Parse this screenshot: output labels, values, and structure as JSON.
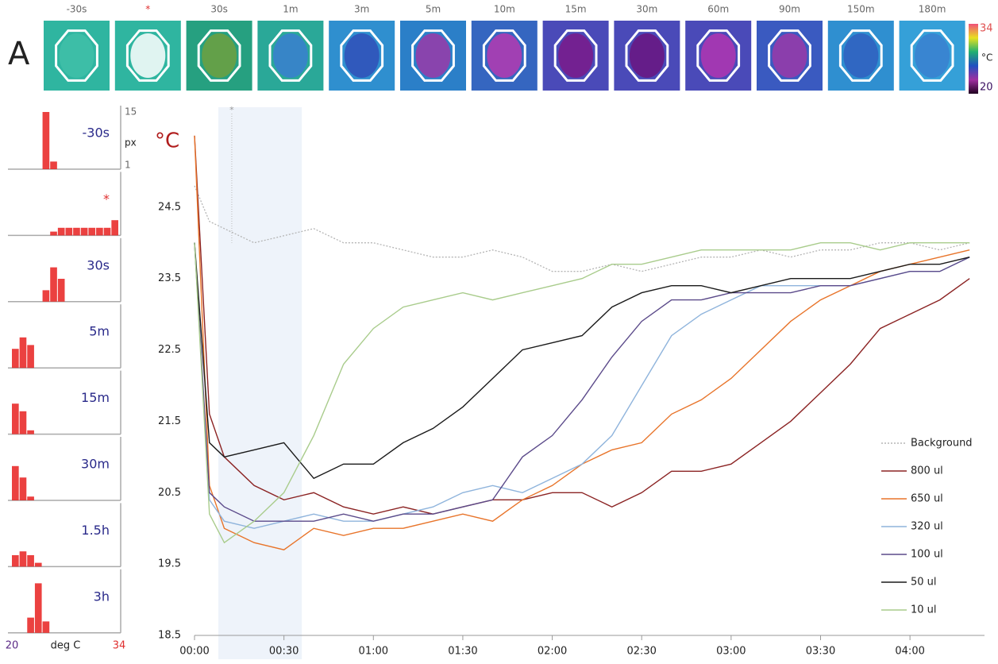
{
  "figure": {
    "panel_label": "A",
    "thumbnails": [
      {
        "label": "-30s",
        "color": "#2fb5a0",
        "inner": "#3fc0a8",
        "label_color": "#666666"
      },
      {
        "label": "*",
        "color": "#2fb5a0",
        "inner": "#ffffff",
        "label_color": "#e03030"
      },
      {
        "label": "30s",
        "color": "#26a080",
        "inner": "#6fa040",
        "label_color": "#666666"
      },
      {
        "label": "1m",
        "color": "#2aa898",
        "inner": "#3a7fcf",
        "label_color": "#666666"
      },
      {
        "label": "3m",
        "color": "#2f8fcf",
        "inner": "#3050b8",
        "label_color": "#666666"
      },
      {
        "label": "5m",
        "color": "#2b7fc8",
        "inner": "#9a3aa8",
        "label_color": "#666666"
      },
      {
        "label": "10m",
        "color": "#3566c0",
        "inner": "#b43ab0",
        "label_color": "#666666"
      },
      {
        "label": "15m",
        "color": "#4a4ab8",
        "inner": "#7a1a8a",
        "label_color": "#666666"
      },
      {
        "label": "30m",
        "color": "#4a4ab8",
        "inner": "#6a1580",
        "label_color": "#666666"
      },
      {
        "label": "60m",
        "color": "#4a4ab8",
        "inner": "#b035b0",
        "label_color": "#666666"
      },
      {
        "label": "90m",
        "color": "#3a5ac0",
        "inner": "#9a3aa8",
        "label_color": "#666666"
      },
      {
        "label": "150m",
        "color": "#2f8fd0",
        "inner": "#3060c0",
        "label_color": "#666666"
      },
      {
        "label": "180m",
        "color": "#35a0d8",
        "inner": "#3a80d0",
        "label_color": "#666666"
      }
    ],
    "colorbar": {
      "max": 34,
      "min": 20,
      "label": "°C",
      "colors": [
        "#f0507a",
        "#e8e020",
        "#20b070",
        "#2050c0",
        "#a030a0",
        "#200020"
      ]
    }
  },
  "chart_data": [
    {
      "type": "line",
      "y_label": "°C",
      "y_label_color": "#b01c1c",
      "xlim": [
        0,
        265
      ],
      "ylim": [
        18.5,
        25.9
      ],
      "xticks": [
        {
          "value": 0,
          "label": "00:00"
        },
        {
          "value": 30,
          "label": "00:30"
        },
        {
          "value": 60,
          "label": "01:00"
        },
        {
          "value": 90,
          "label": "01:30"
        },
        {
          "value": 120,
          "label": "02:00"
        },
        {
          "value": 150,
          "label": "02:30"
        },
        {
          "value": 180,
          "label": "03:00"
        },
        {
          "value": 210,
          "label": "03:30"
        },
        {
          "value": 240,
          "label": "04:00"
        }
      ],
      "yticks": [
        18.5,
        19.5,
        20.5,
        21.5,
        22.5,
        23.5,
        24.5
      ],
      "shaded_region": {
        "start": 8,
        "end": 36,
        "color": "#eef3fa"
      },
      "annotation": {
        "text": "*",
        "x": 12.5
      },
      "legend": "lower right",
      "x": [
        0,
        5,
        10,
        20,
        30,
        40,
        50,
        60,
        70,
        80,
        90,
        100,
        110,
        120,
        130,
        140,
        150,
        160,
        170,
        180,
        190,
        200,
        210,
        220,
        230,
        240,
        250,
        260
      ],
      "series": [
        {
          "name": "Background",
          "color": "#b5b5b5",
          "style": "dotted",
          "values": [
            24.8,
            24.3,
            24.2,
            24.0,
            24.1,
            24.2,
            24.0,
            24.0,
            23.9,
            23.8,
            23.8,
            23.9,
            23.8,
            23.6,
            23.6,
            23.7,
            23.6,
            23.7,
            23.8,
            23.8,
            23.9,
            23.8,
            23.9,
            23.9,
            24.0,
            24.0,
            23.9,
            24.0
          ]
        },
        {
          "name": "800 ul",
          "color": "#8b2323",
          "style": "solid",
          "values": [
            25.5,
            21.6,
            21.0,
            20.6,
            20.4,
            20.5,
            20.3,
            20.2,
            20.3,
            20.2,
            20.3,
            20.4,
            20.4,
            20.5,
            20.5,
            20.3,
            20.5,
            20.8,
            20.8,
            20.9,
            21.2,
            21.5,
            21.9,
            22.3,
            22.8,
            23.0,
            23.2,
            23.5
          ]
        },
        {
          "name": "650 ul",
          "color": "#e8742a",
          "style": "solid",
          "values": [
            25.5,
            20.6,
            20.0,
            19.8,
            19.7,
            20.0,
            19.9,
            20.0,
            20.0,
            20.1,
            20.2,
            20.1,
            20.4,
            20.6,
            20.9,
            21.1,
            21.2,
            21.6,
            21.8,
            22.1,
            22.5,
            22.9,
            23.2,
            23.4,
            23.6,
            23.7,
            23.8,
            23.9
          ]
        },
        {
          "name": "320 ul",
          "color": "#8fb4dc",
          "style": "solid",
          "values": [
            24.0,
            20.4,
            20.1,
            20.0,
            20.1,
            20.2,
            20.1,
            20.1,
            20.2,
            20.3,
            20.5,
            20.6,
            20.5,
            20.7,
            20.9,
            21.3,
            22.0,
            22.7,
            23.0,
            23.2,
            23.4,
            23.4,
            23.4,
            23.4,
            23.5,
            23.6,
            23.6,
            23.8
          ]
        },
        {
          "name": "100 ul",
          "color": "#5b4a8a",
          "style": "solid",
          "values": [
            24.0,
            20.5,
            20.3,
            20.1,
            20.1,
            20.1,
            20.2,
            20.1,
            20.2,
            20.2,
            20.3,
            20.4,
            21.0,
            21.3,
            21.8,
            22.4,
            22.9,
            23.2,
            23.2,
            23.3,
            23.3,
            23.3,
            23.4,
            23.4,
            23.5,
            23.6,
            23.6,
            23.8
          ]
        },
        {
          "name": "50 ul",
          "color": "#1a1a1a",
          "style": "solid",
          "values": [
            24.0,
            21.2,
            21.0,
            21.1,
            21.2,
            20.7,
            20.9,
            20.9,
            21.2,
            21.4,
            21.7,
            22.1,
            22.5,
            22.6,
            22.7,
            23.1,
            23.3,
            23.4,
            23.4,
            23.3,
            23.4,
            23.5,
            23.5,
            23.5,
            23.6,
            23.7,
            23.7,
            23.8
          ]
        },
        {
          "name": "10 ul",
          "color": "#a9cc8c",
          "style": "solid",
          "values": [
            24.0,
            20.2,
            19.8,
            20.1,
            20.5,
            21.3,
            22.3,
            22.8,
            23.1,
            23.2,
            23.3,
            23.2,
            23.3,
            23.4,
            23.5,
            23.7,
            23.7,
            23.8,
            23.9,
            23.9,
            23.9,
            23.9,
            24.0,
            24.0,
            23.9,
            24.0,
            24.0,
            24.0
          ]
        }
      ]
    },
    {
      "type": "histogram",
      "title": "-30s",
      "title_color": "#2a2a8a",
      "color": "#e8201e",
      "xlim": [
        20,
        34
      ],
      "ylim": [
        0,
        15
      ],
      "yticks": [
        15,
        1
      ],
      "y_label": "px",
      "bins": [
        20,
        21,
        22,
        23,
        24,
        25,
        26,
        27,
        28,
        29,
        30,
        31,
        32,
        33,
        34
      ],
      "counts": [
        0,
        0,
        0,
        0,
        15,
        2,
        0,
        0,
        0,
        0,
        0,
        0,
        0,
        0
      ]
    },
    {
      "type": "histogram",
      "title": "*",
      "title_color": "#e03030",
      "color": "#e8201e",
      "xlim": [
        20,
        34
      ],
      "ylim": [
        0,
        15
      ],
      "bins": [
        20,
        21,
        22,
        23,
        24,
        25,
        26,
        27,
        28,
        29,
        30,
        31,
        32,
        33,
        34
      ],
      "counts": [
        0,
        0,
        0,
        0,
        0,
        1,
        2,
        2,
        2,
        2,
        2,
        2,
        2,
        4
      ]
    },
    {
      "type": "histogram",
      "title": "30s",
      "title_color": "#2a2a8a",
      "color": "#e8201e",
      "xlim": [
        20,
        34
      ],
      "ylim": [
        0,
        15
      ],
      "bins": [
        20,
        21,
        22,
        23,
        24,
        25,
        26,
        27,
        28,
        29,
        30,
        31,
        32,
        33,
        34
      ],
      "counts": [
        0,
        0,
        0,
        0,
        3,
        9,
        6,
        0,
        0,
        0,
        0,
        0,
        0,
        0
      ]
    },
    {
      "type": "histogram",
      "title": "5m",
      "title_color": "#2a2a8a",
      "color": "#e8201e",
      "xlim": [
        20,
        34
      ],
      "ylim": [
        0,
        15
      ],
      "bins": [
        20,
        21,
        22,
        23,
        24,
        25,
        26,
        27,
        28,
        29,
        30,
        31,
        32,
        33,
        34
      ],
      "counts": [
        5,
        8,
        6,
        0,
        0,
        0,
        0,
        0,
        0,
        0,
        0,
        0,
        0,
        0
      ]
    },
    {
      "type": "histogram",
      "title": "15m",
      "title_color": "#2a2a8a",
      "color": "#e8201e",
      "xlim": [
        20,
        34
      ],
      "ylim": [
        0,
        15
      ],
      "bins": [
        20,
        21,
        22,
        23,
        24,
        25,
        26,
        27,
        28,
        29,
        30,
        31,
        32,
        33,
        34
      ],
      "counts": [
        8,
        6,
        1,
        0,
        0,
        0,
        0,
        0,
        0,
        0,
        0,
        0,
        0,
        0
      ]
    },
    {
      "type": "histogram",
      "title": "30m",
      "title_color": "#2a2a8a",
      "color": "#e8201e",
      "xlim": [
        20,
        34
      ],
      "ylim": [
        0,
        15
      ],
      "bins": [
        20,
        21,
        22,
        23,
        24,
        25,
        26,
        27,
        28,
        29,
        30,
        31,
        32,
        33,
        34
      ],
      "counts": [
        9,
        6,
        1,
        0,
        0,
        0,
        0,
        0,
        0,
        0,
        0,
        0,
        0,
        0
      ]
    },
    {
      "type": "histogram",
      "title": "1.5h",
      "title_color": "#2a2a8a",
      "color": "#e8201e",
      "xlim": [
        20,
        34
      ],
      "ylim": [
        0,
        15
      ],
      "bins": [
        20,
        21,
        22,
        23,
        24,
        25,
        26,
        27,
        28,
        29,
        30,
        31,
        32,
        33,
        34
      ],
      "counts": [
        3,
        4,
        3,
        1,
        0,
        0,
        0,
        0,
        0,
        0,
        0,
        0,
        0,
        0
      ]
    },
    {
      "type": "histogram",
      "title": "3h",
      "title_color": "#2a2a8a",
      "color": "#e8201e",
      "xlim": [
        20,
        34
      ],
      "ylim": [
        0,
        15
      ],
      "xticks": [
        20,
        34
      ],
      "xtick_colors": [
        "#5b2a86",
        "#e03030"
      ],
      "x_label": "deg C",
      "bins": [
        20,
        21,
        22,
        23,
        24,
        25,
        26,
        27,
        28,
        29,
        30,
        31,
        32,
        33,
        34
      ],
      "counts": [
        0,
        0,
        4,
        13,
        3,
        0,
        0,
        0,
        0,
        0,
        0,
        0,
        0,
        0
      ]
    }
  ]
}
